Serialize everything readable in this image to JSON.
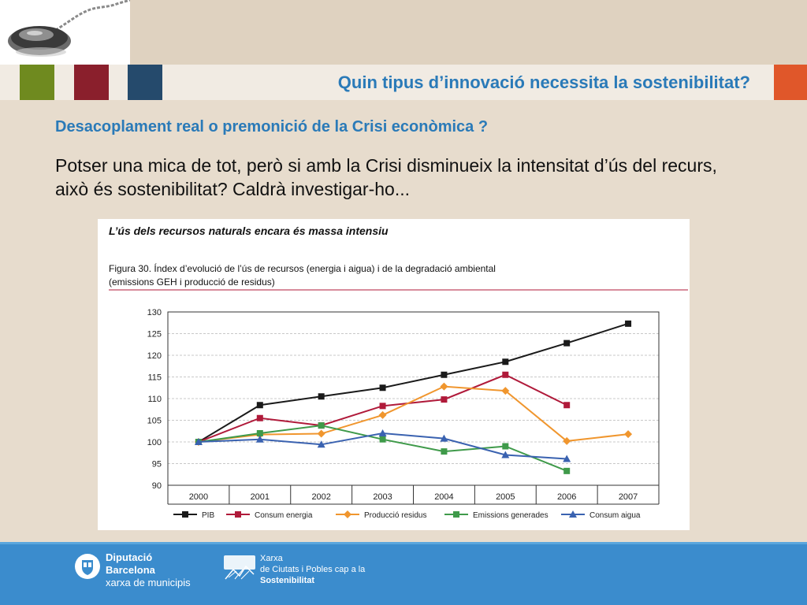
{
  "header": {
    "title": "Quin tipus d’innovació necessita la sostenibilitat?"
  },
  "content": {
    "subtitle": "Desacoplament real o premonició de la Crisi econòmica ?",
    "body": "Potser una mica de tot, però si amb la Crisi disminueix la intensitat d’ús del recurs, això és sostenibilitat? Caldrà investigar-ho..."
  },
  "chart_card": {
    "heading": "L’ús dels recursos naturals encara és massa intensiu",
    "caption_prefix": "Figura 30.",
    "caption_line1": " Índex d’evolució de l’ús de recursos (energia i aigua) i de la degradació ambiental",
    "caption_line2": "(emissions GEH i producció de residus)"
  },
  "chart_data": {
    "type": "line",
    "x": [
      "2000",
      "2001",
      "2002",
      "2003",
      "2004",
      "2005",
      "2006",
      "2007"
    ],
    "ylim": [
      90,
      130
    ],
    "yticks": [
      90,
      95,
      100,
      105,
      110,
      115,
      120,
      125,
      130
    ],
    "grid": true,
    "legend_position": "bottom",
    "series": [
      {
        "name": "PIB",
        "color": "#1a1a1a",
        "marker": "square",
        "values": [
          100,
          108.5,
          110.5,
          112.5,
          115.5,
          118.5,
          122.8,
          127.3
        ]
      },
      {
        "name": "Consum energia",
        "color": "#b01a3a",
        "marker": "square",
        "values": [
          100,
          105.5,
          103.8,
          108.3,
          109.8,
          115.5,
          108.5,
          null
        ]
      },
      {
        "name": "Producció residus",
        "color": "#f0962e",
        "marker": "diamond",
        "values": [
          100,
          101.7,
          101.9,
          106.2,
          112.8,
          111.8,
          100.2,
          101.8
        ]
      },
      {
        "name": "Emissions generades",
        "color": "#3f9a4a",
        "marker": "square",
        "values": [
          100,
          102,
          103.8,
          100.6,
          97.8,
          99,
          93.3,
          null
        ]
      },
      {
        "name": "Consum aigua",
        "color": "#3a62b0",
        "marker": "triangle",
        "values": [
          100,
          100.6,
          99.4,
          102,
          100.8,
          97,
          96.1,
          null
        ]
      }
    ]
  },
  "footer": {
    "org1_line1": "Diputació",
    "org1_line2": "Barcelona",
    "org1_line3": "xarxa de municipis",
    "org2_line1": "Xarxa",
    "org2_line2": "de Ciutats i Pobles cap a la",
    "org2_line3": "Sostenibilitat"
  }
}
